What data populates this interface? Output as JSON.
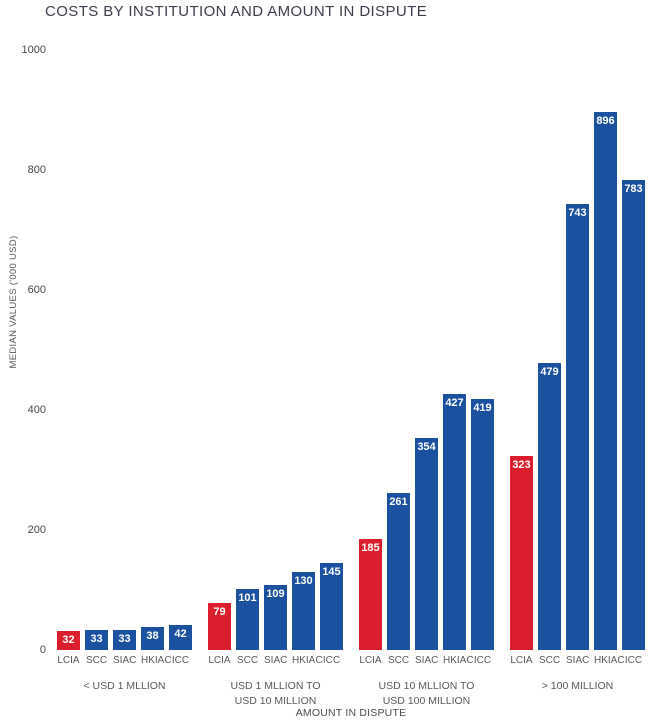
{
  "colors": {
    "highlight": "#DA1E2D",
    "bar": "#1B519F",
    "value_label": "#ffffff",
    "title_text": "#3d3d4b",
    "axis_text": "#58595b"
  },
  "chart_data": {
    "type": "bar",
    "title": "COSTS BY INSTITUTION AND AMOUNT IN DISPUTE",
    "ylabel": "MEDIAN VALUES ('000 USD)",
    "xlabel": "AMOUNT IN DISPUTE",
    "ylim": [
      0,
      1000
    ],
    "yticks": [
      0,
      200,
      400,
      600,
      800,
      1000
    ],
    "grid": false,
    "legend": "none",
    "institutions": [
      "LCIA",
      "SCC",
      "SIAC",
      "HKIAC",
      "ICC"
    ],
    "highlight_institution": "LCIA",
    "groups": [
      {
        "label_lines": [
          "< USD 1 MLLION"
        ],
        "values": [
          32,
          33,
          33,
          38,
          42
        ]
      },
      {
        "label_lines": [
          "USD 1 MLLION TO",
          "USD 10 MILLION"
        ],
        "values": [
          79,
          101,
          109,
          130,
          145
        ]
      },
      {
        "label_lines": [
          "USD 10 MLLION TO",
          "USD 100 MILLION"
        ],
        "values": [
          185,
          261,
          354,
          427,
          419
        ]
      },
      {
        "label_lines": [
          "> 100 MILLION"
        ],
        "values": [
          323,
          479,
          743,
          896,
          783
        ]
      }
    ]
  }
}
